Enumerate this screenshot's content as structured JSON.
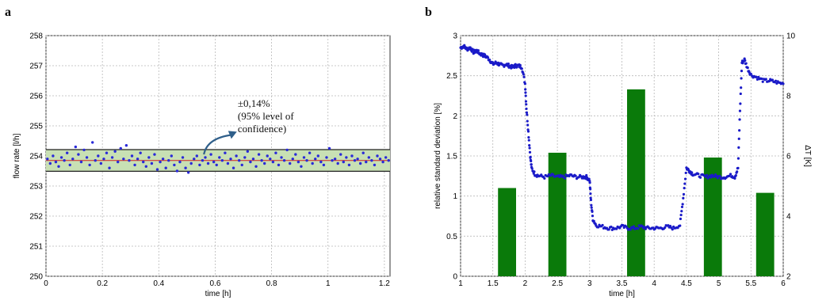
{
  "panels": {
    "a": "a",
    "b": "b"
  },
  "chart_data": [
    {
      "type": "scatter",
      "panel": "a",
      "xlabel": "time [h]",
      "ylabel": "flow rate [l/h]",
      "xlim": [
        0,
        1.22
      ],
      "ylim": [
        250,
        258
      ],
      "xticks": [
        0,
        0.2,
        0.4,
        0.6,
        0.8,
        1,
        1.2
      ],
      "xtick_labels": [
        "0",
        "0.2",
        "0.4",
        "0.6",
        "0.8",
        "1",
        "1.2"
      ],
      "yticks": [
        250,
        251,
        252,
        253,
        254,
        255,
        256,
        257,
        258
      ],
      "ytick_labels": [
        "250",
        "251",
        "252",
        "253",
        "254",
        "255",
        "256",
        "257",
        "258"
      ],
      "grid": true,
      "mean": 253.85,
      "confidence_band": [
        253.49,
        254.21
      ],
      "band_color": "#c8e0b4",
      "mean_color": "#d02020",
      "point_color": "#2a2ad8",
      "annotation": {
        "lines": [
          "±0,14%",
          "(95% level of",
          "confidence)"
        ],
        "arrow_from": [
          0.56,
          254.05
        ],
        "arrow_to": [
          0.66,
          254.7
        ]
      },
      "x": [
        0.005,
        0.015,
        0.025,
        0.035,
        0.045,
        0.055,
        0.065,
        0.075,
        0.085,
        0.095,
        0.105,
        0.115,
        0.125,
        0.135,
        0.145,
        0.155,
        0.165,
        0.175,
        0.185,
        0.195,
        0.205,
        0.215,
        0.225,
        0.235,
        0.245,
        0.255,
        0.265,
        0.275,
        0.285,
        0.295,
        0.305,
        0.315,
        0.325,
        0.335,
        0.345,
        0.355,
        0.365,
        0.375,
        0.385,
        0.395,
        0.405,
        0.415,
        0.425,
        0.435,
        0.445,
        0.455,
        0.465,
        0.475,
        0.485,
        0.495,
        0.505,
        0.515,
        0.525,
        0.535,
        0.545,
        0.555,
        0.565,
        0.575,
        0.585,
        0.595,
        0.605,
        0.615,
        0.625,
        0.635,
        0.645,
        0.655,
        0.665,
        0.675,
        0.685,
        0.695,
        0.705,
        0.715,
        0.725,
        0.735,
        0.745,
        0.755,
        0.765,
        0.775,
        0.785,
        0.795,
        0.805,
        0.815,
        0.825,
        0.835,
        0.845,
        0.855,
        0.865,
        0.875,
        0.885,
        0.895,
        0.905,
        0.915,
        0.925,
        0.935,
        0.945,
        0.955,
        0.965,
        0.975,
        0.985,
        0.995,
        1.005,
        1.015,
        1.025,
        1.035,
        1.045,
        1.055,
        1.065,
        1.075,
        1.085,
        1.095,
        1.105,
        1.115,
        1.125,
        1.135,
        1.145,
        1.155,
        1.165,
        1.175,
        1.185,
        1.195,
        1.205,
        1.215
      ],
      "y": [
        253.9,
        253.75,
        254.0,
        253.8,
        253.65,
        253.95,
        253.85,
        254.1,
        253.7,
        253.9,
        254.3,
        254.05,
        253.8,
        254.2,
        253.95,
        253.7,
        254.45,
        253.85,
        254.0,
        253.75,
        253.9,
        254.1,
        253.6,
        253.95,
        254.15,
        253.8,
        254.25,
        253.9,
        254.35,
        253.85,
        254.0,
        253.7,
        253.9,
        254.1,
        253.8,
        253.65,
        253.95,
        253.75,
        254.05,
        253.55,
        253.8,
        253.9,
        253.6,
        253.85,
        254.0,
        253.7,
        253.5,
        253.8,
        253.95,
        253.6,
        253.45,
        253.75,
        253.9,
        254.0,
        253.7,
        253.85,
        253.95,
        253.75,
        254.05,
        253.8,
        253.7,
        253.95,
        253.85,
        254.1,
        253.75,
        253.9,
        253.6,
        254.0,
        253.85,
        253.7,
        253.95,
        254.15,
        253.8,
        253.9,
        253.65,
        254.05,
        253.85,
        253.75,
        254.0,
        253.9,
        253.8,
        254.1,
        253.7,
        253.95,
        253.85,
        254.2,
        253.75,
        253.9,
        254.05,
        253.8,
        253.65,
        253.95,
        253.85,
        254.1,
        253.75,
        253.9,
        254.0,
        253.8,
        253.7,
        253.95,
        254.25,
        253.85,
        253.9,
        253.75,
        254.05,
        253.8,
        253.95,
        253.7,
        254.0,
        253.85,
        253.9,
        253.75,
        254.1,
        253.8,
        253.95,
        253.85,
        253.7,
        254.0,
        253.9,
        253.8,
        253.95,
        253.85
      ]
    },
    {
      "type": "bar",
      "panel": "b",
      "xlabel": "time [h]",
      "ylabel": "relative standard deviation [%]",
      "y2label": "ΔT [K]",
      "xlim": [
        1,
        6
      ],
      "ylim": [
        0,
        3
      ],
      "y2lim": [
        2,
        10
      ],
      "xticks": [
        1,
        1.5,
        2,
        2.5,
        3,
        3.5,
        4,
        4.5,
        5,
        5.5,
        6
      ],
      "xtick_labels": [
        "1",
        "1.5",
        "2",
        "2.5",
        "3",
        "3.5",
        "4",
        "4.5",
        "5",
        "5.5",
        "6"
      ],
      "yticks": [
        0,
        0.5,
        1,
        1.5,
        2,
        2.5,
        3
      ],
      "ytick_labels": [
        "0",
        "0.5",
        "1",
        "1.5",
        "2",
        "2.5",
        "3"
      ],
      "y2ticks": [
        2,
        4,
        6,
        8,
        10
      ],
      "y2tick_labels": [
        "2",
        "4",
        "6",
        "8",
        "10"
      ],
      "grid": true,
      "bar_color": "#0a7a0a",
      "ylabel_color": "#0a7a0a",
      "y2label_color": "#1a1a8c",
      "point_color": "#1a1ac8",
      "bars": [
        {
          "center": 1.72,
          "width": 0.28,
          "value": 1.1
        },
        {
          "center": 2.5,
          "width": 0.28,
          "value": 1.54
        },
        {
          "center": 3.72,
          "width": 0.28,
          "value": 2.33
        },
        {
          "center": 4.91,
          "width": 0.28,
          "value": 1.48
        },
        {
          "center": 5.72,
          "width": 0.28,
          "value": 1.04
        }
      ],
      "dT_series": {
        "x": [
          1.0,
          1.05,
          1.1,
          1.15,
          1.2,
          1.25,
          1.3,
          1.35,
          1.4,
          1.45,
          1.5,
          1.55,
          1.6,
          1.65,
          1.7,
          1.75,
          1.8,
          1.85,
          1.9,
          1.95,
          2.0,
          2.02,
          2.05,
          2.08,
          2.1,
          2.15,
          2.2,
          2.3,
          2.4,
          2.5,
          2.6,
          2.7,
          2.8,
          2.9,
          2.95,
          3.0,
          3.02,
          3.05,
          3.1,
          3.2,
          3.3,
          3.4,
          3.5,
          3.6,
          3.7,
          3.8,
          3.9,
          4.0,
          4.1,
          4.2,
          4.3,
          4.4,
          4.45,
          4.5,
          4.55,
          4.6,
          4.7,
          4.8,
          4.9,
          5.0,
          5.1,
          5.2,
          5.25,
          5.3,
          5.33,
          5.36,
          5.4,
          5.45,
          5.5,
          5.6,
          5.7,
          5.8,
          5.9,
          6.0
        ],
        "y": [
          9.6,
          9.65,
          9.55,
          9.6,
          9.45,
          9.5,
          9.4,
          9.35,
          9.3,
          9.2,
          9.05,
          9.1,
          9.05,
          9.0,
          9.05,
          9.0,
          8.95,
          9.0,
          9.0,
          8.95,
          8.4,
          7.6,
          6.8,
          6.0,
          5.6,
          5.4,
          5.35,
          5.3,
          5.35,
          5.3,
          5.3,
          5.35,
          5.3,
          5.3,
          5.3,
          5.2,
          4.5,
          3.9,
          3.7,
          3.65,
          3.6,
          3.6,
          3.65,
          3.6,
          3.6,
          3.65,
          3.6,
          3.6,
          3.6,
          3.65,
          3.6,
          3.7,
          4.6,
          5.6,
          5.5,
          5.4,
          5.35,
          5.3,
          5.35,
          5.3,
          5.3,
          5.35,
          5.3,
          5.6,
          7.5,
          9.1,
          9.2,
          8.9,
          8.7,
          8.6,
          8.5,
          8.5,
          8.45,
          8.4
        ]
      }
    }
  ]
}
